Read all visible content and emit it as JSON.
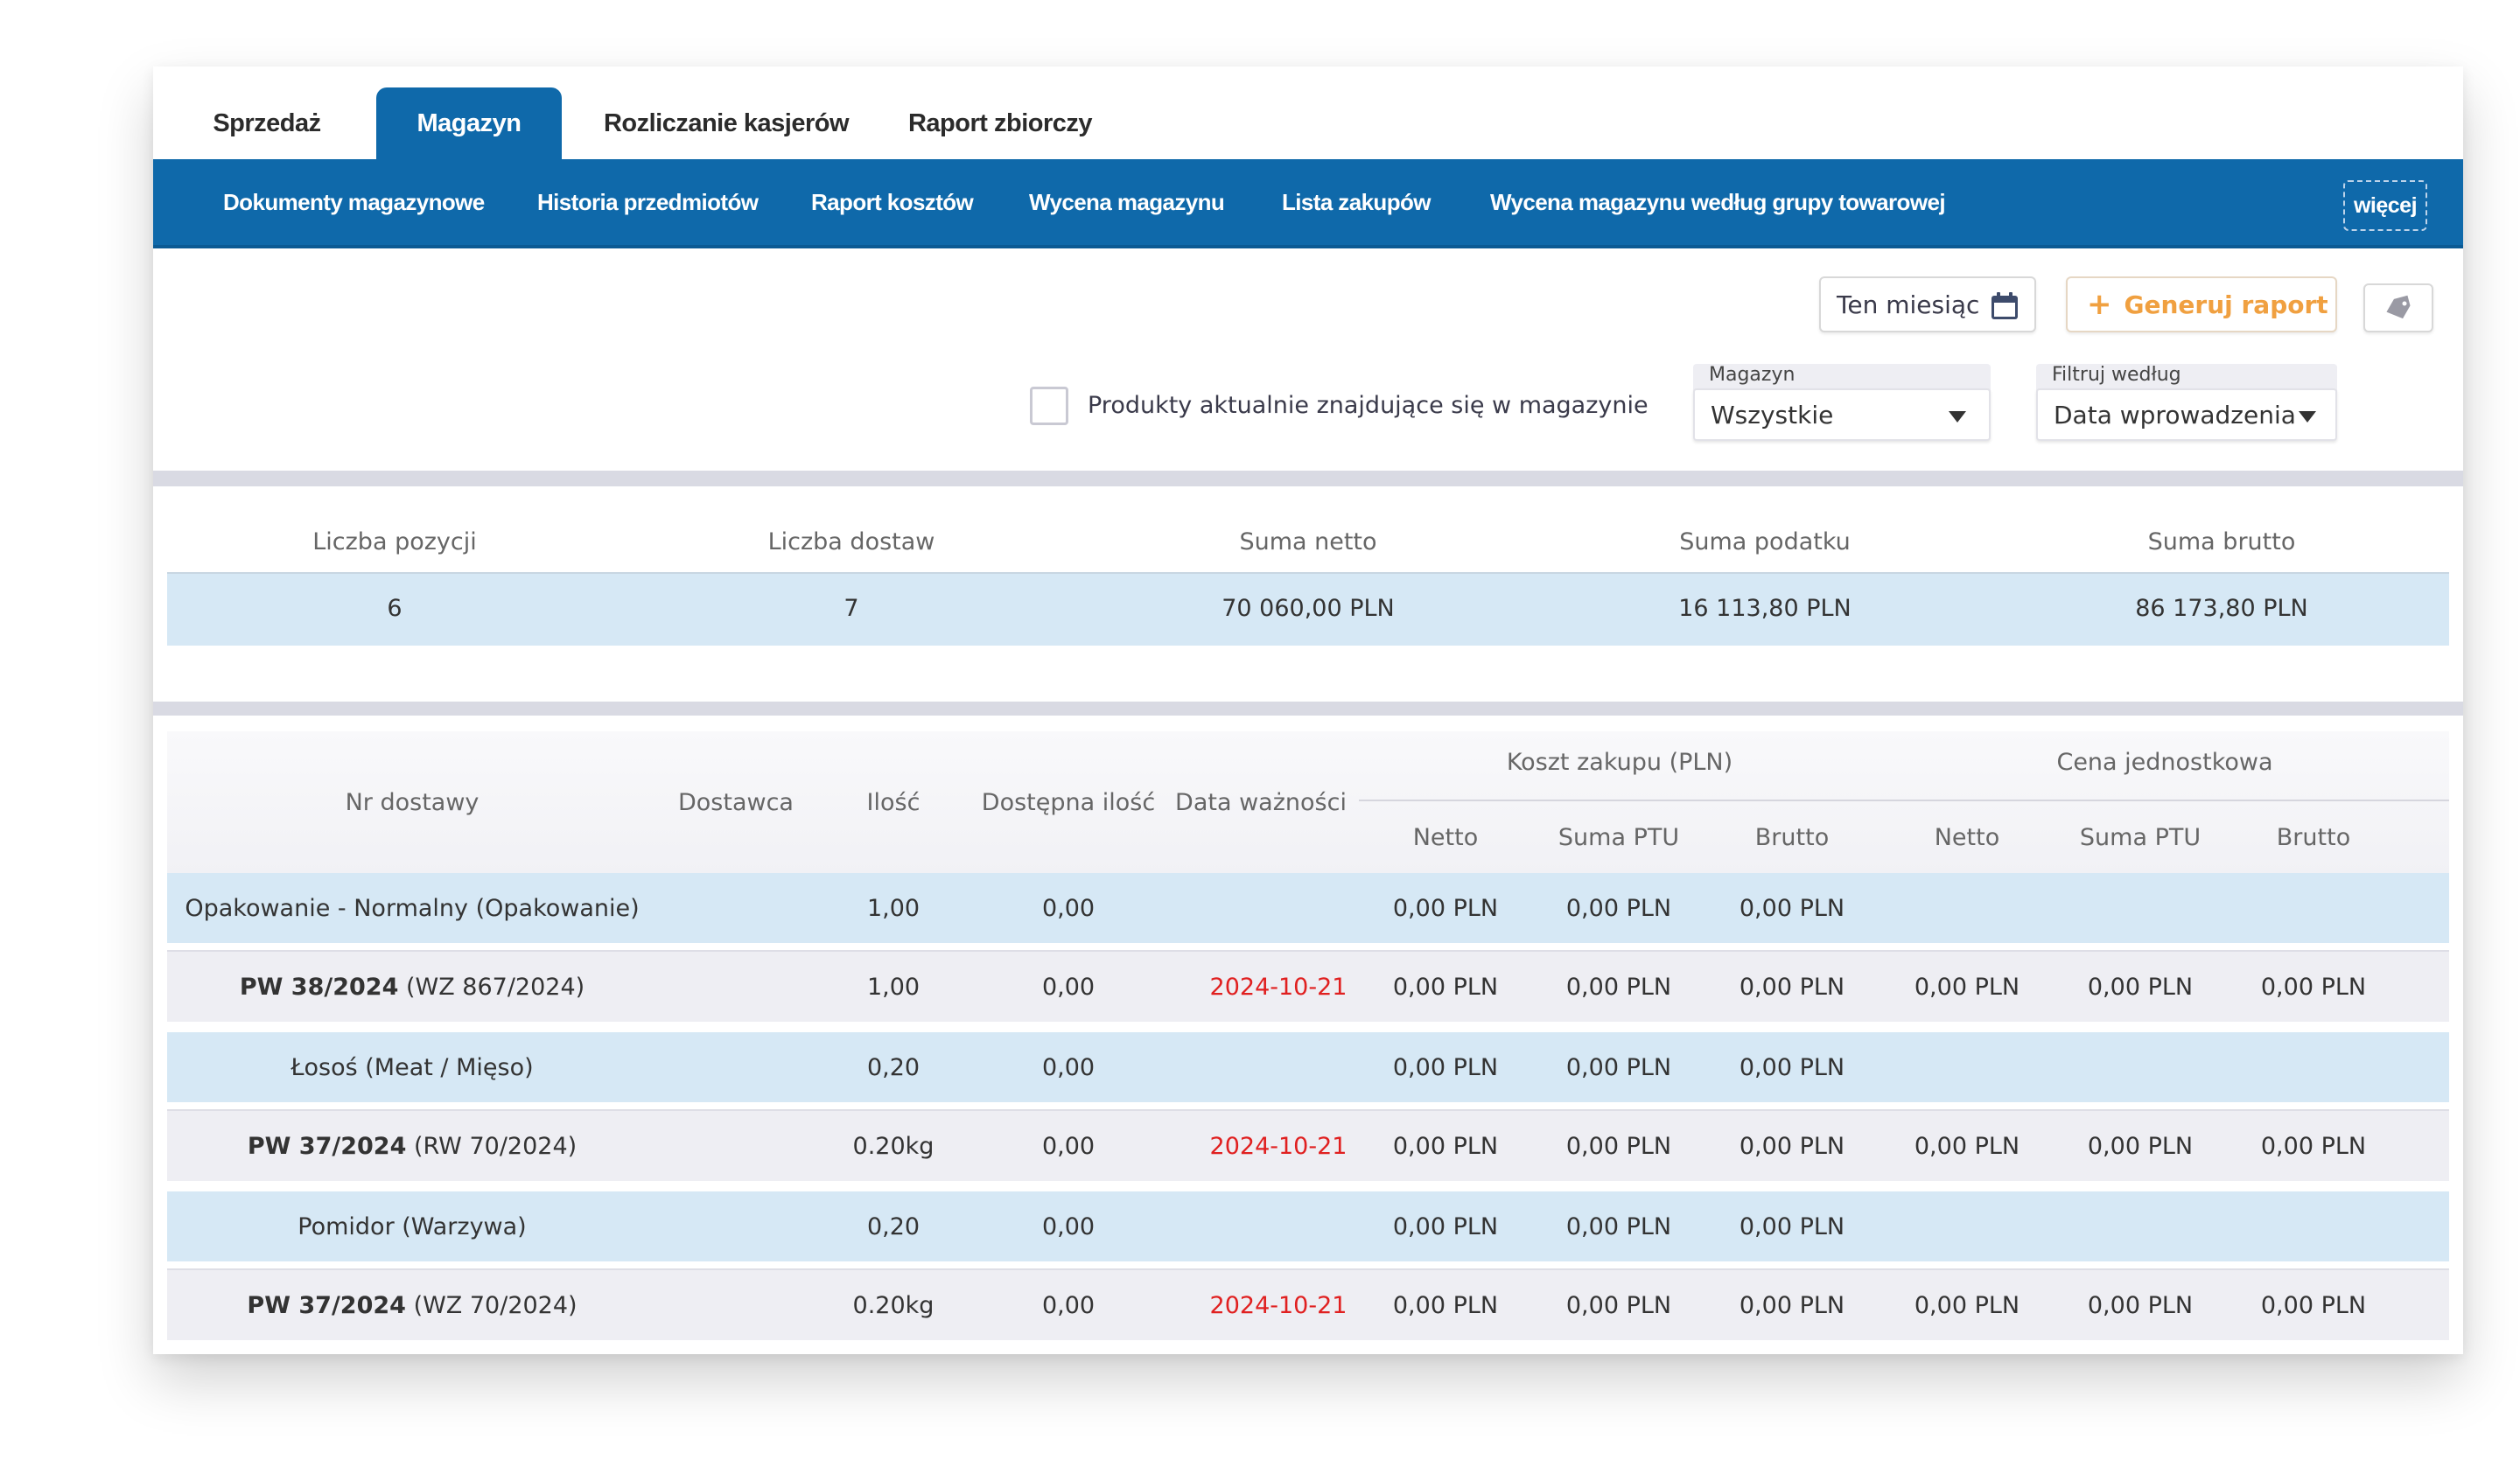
{
  "tabs": [
    "Sprzedaż",
    "Magazyn",
    "Rozliczanie kasjerów",
    "Raport zbiorczy"
  ],
  "active_tab": "Magazyn",
  "subnav": [
    "Dokumenty magazynowe",
    "Historia przedmiotów",
    "Raport kosztów",
    "Wycena magazynu",
    "Lista zakupów",
    "Wycena magazynu według grupy towarowej"
  ],
  "more_label": "więcej",
  "date_button": "Ten miesiąc",
  "generate_button": "Generuj raport",
  "generate_plus": "+",
  "checkbox_label": "Produkty aktualnie znajdujące się w magazynie",
  "checkbox_checked": false,
  "warehouse": {
    "label": "Magazyn",
    "value": "Wszystkie"
  },
  "filter": {
    "label": "Filtruj według",
    "value": "Data wprowadzenia"
  },
  "summary": {
    "headers": [
      "Liczba pozycji",
      "Liczba dostaw",
      "Suma netto",
      "Suma podatku",
      "Suma brutto"
    ],
    "values": [
      "6",
      "7",
      "70 060,00 PLN",
      "16 113,80 PLN",
      "86 173,80 PLN"
    ]
  },
  "table": {
    "headers": {
      "nr_dostawy": "Nr dostawy",
      "dostawca": "Dostawca",
      "ilosc": "Ilość",
      "dostepna": "Dostępna ilość",
      "data": "Data ważności",
      "koszt_group": "Koszt zakupu (PLN)",
      "cena_group": "Cena jednostkowa",
      "netto": "Netto",
      "suma_ptu": "Suma PTU",
      "brutto": "Brutto"
    },
    "rows": [
      {
        "type": "product",
        "name": "Opakowanie - Normalny (Opakowanie)",
        "ilosc": "1,00",
        "dostepna": "0,00",
        "data": "",
        "k_netto": "0,00 PLN",
        "k_ptu": "0,00 PLN",
        "k_brutto": "0,00 PLN",
        "c_netto": "",
        "c_ptu": "",
        "c_brutto": ""
      },
      {
        "type": "delivery",
        "doc": "PW 38/2024",
        "ref": "(WZ 867/2024)",
        "ilosc": "1,00",
        "dostepna": "0,00",
        "data": "2024-10-21",
        "k_netto": "0,00 PLN",
        "k_ptu": "0,00 PLN",
        "k_brutto": "0,00 PLN",
        "c_netto": "0,00 PLN",
        "c_ptu": "0,00 PLN",
        "c_brutto": "0,00 PLN"
      },
      {
        "type": "product",
        "name": "Łosoś (Meat / Mięso)",
        "ilosc": "0,20",
        "dostepna": "0,00",
        "data": "",
        "k_netto": "0,00 PLN",
        "k_ptu": "0,00 PLN",
        "k_brutto": "0,00 PLN",
        "c_netto": "",
        "c_ptu": "",
        "c_brutto": ""
      },
      {
        "type": "delivery",
        "doc": "PW 37/2024",
        "ref": "(RW 70/2024)",
        "ilosc": "0.20kg",
        "dostepna": "0,00",
        "data": "2024-10-21",
        "k_netto": "0,00 PLN",
        "k_ptu": "0,00 PLN",
        "k_brutto": "0,00 PLN",
        "c_netto": "0,00 PLN",
        "c_ptu": "0,00 PLN",
        "c_brutto": "0,00 PLN"
      },
      {
        "type": "product",
        "name": "Pomidor (Warzywa)",
        "ilosc": "0,20",
        "dostepna": "0,00",
        "data": "",
        "k_netto": "0,00 PLN",
        "k_ptu": "0,00 PLN",
        "k_brutto": "0,00 PLN",
        "c_netto": "",
        "c_ptu": "",
        "c_brutto": ""
      },
      {
        "type": "delivery",
        "doc": "PW 37/2024",
        "ref": "(WZ 70/2024)",
        "ilosc": "0.20kg",
        "dostepna": "0,00",
        "data": "2024-10-21",
        "k_netto": "0,00 PLN",
        "k_ptu": "0,00 PLN",
        "k_brutto": "0,00 PLN",
        "c_netto": "0,00 PLN",
        "c_ptu": "0,00 PLN",
        "c_brutto": "0,00 PLN"
      }
    ]
  },
  "icons": {
    "date": "calendar-icon",
    "tag": "tag-icon",
    "generate": "plus-icon"
  },
  "colors": {
    "primary": "#0f69aa",
    "accent": "#f0a040",
    "date_red": "#e02020",
    "row_blue": "#d6e8f5",
    "row_gray": "#eeeef3"
  }
}
